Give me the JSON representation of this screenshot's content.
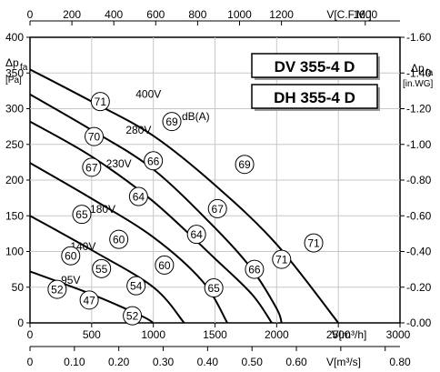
{
  "chart_data": {
    "type": "line",
    "models": [
      "DV 355-4 D",
      "DH 355-4 D"
    ],
    "axes": {
      "x_bottom_m3h": {
        "label": "V[m³/h]",
        "ticks": [
          0,
          500,
          1000,
          1500,
          2000,
          2500,
          3000
        ],
        "range": [
          0,
          3000
        ]
      },
      "x_bottom_m3s": {
        "label": "V[m³/s]",
        "ticks": [
          "0",
          "0.10",
          "0.20",
          "0.30",
          "0.40",
          "0.50",
          "0.60",
          "0.70",
          "0.80"
        ]
      },
      "x_top_cfm": {
        "label": "V[C.F.M.]",
        "ticks": [
          "0",
          "200",
          "400",
          "600",
          "800",
          "1000",
          "1200",
          "1600"
        ]
      },
      "y_left_pa": {
        "label_main": "Δp",
        "label_sub": "fa",
        "unit": "[Pa]",
        "ticks": [
          0,
          50,
          100,
          150,
          200,
          250,
          300,
          350,
          400
        ],
        "range": [
          0,
          400
        ]
      },
      "y_right_inwg": {
        "label_main": "Δp",
        "label_sub": "fa",
        "unit": "[in.WG]",
        "ticks": [
          "0.00",
          "0.20",
          "0.40",
          "0.60",
          "0.80",
          "1.00",
          "1.20",
          "1.40",
          "1.60"
        ]
      }
    },
    "grid": true,
    "dba_unit": "dB(A)",
    "series": [
      {
        "name": "400V",
        "points": [
          [
            0,
            355
          ],
          [
            500,
            310
          ],
          [
            1000,
            262
          ],
          [
            1500,
            193
          ],
          [
            2000,
            110
          ],
          [
            2500,
            0
          ]
        ]
      },
      {
        "name": "280V",
        "points": [
          [
            0,
            320
          ],
          [
            500,
            270
          ],
          [
            1000,
            215
          ],
          [
            1500,
            133
          ],
          [
            1800,
            75
          ],
          [
            2000,
            20
          ],
          [
            2040,
            0
          ]
        ]
      },
      {
        "name": "230V",
        "points": [
          [
            0,
            282
          ],
          [
            500,
            233
          ],
          [
            1000,
            170
          ],
          [
            1500,
            90
          ],
          [
            1800,
            40
          ],
          [
            1960,
            0
          ]
        ]
      },
      {
        "name": "180V",
        "points": [
          [
            0,
            224
          ],
          [
            500,
            174
          ],
          [
            1000,
            120
          ],
          [
            1400,
            58
          ],
          [
            1600,
            0
          ]
        ]
      },
      {
        "name": "140V",
        "points": [
          [
            0,
            150
          ],
          [
            500,
            102
          ],
          [
            1000,
            50
          ],
          [
            1250,
            0
          ]
        ]
      },
      {
        "name": "95V",
        "points": [
          [
            0,
            72
          ],
          [
            500,
            40
          ],
          [
            900,
            10
          ],
          [
            1000,
            0
          ]
        ]
      }
    ],
    "series_labels": [
      {
        "text": "400V",
        "q": 960,
        "p": 315
      },
      {
        "text": "280V",
        "q": 880,
        "p": 265
      },
      {
        "text": "230V",
        "q": 720,
        "p": 218
      },
      {
        "text": "180V",
        "q": 590,
        "p": 154
      },
      {
        "text": "140V",
        "q": 430,
        "p": 102
      },
      {
        "text": "95V",
        "q": 330,
        "p": 55
      }
    ],
    "sound_levels": [
      {
        "value": "71",
        "q": 570,
        "p": 310
      },
      {
        "value": "69",
        "q": 1150,
        "p": 282
      },
      {
        "value": "70",
        "q": 520,
        "p": 261
      },
      {
        "value": "66",
        "q": 1000,
        "p": 227
      },
      {
        "value": "69",
        "q": 1740,
        "p": 222
      },
      {
        "value": "67",
        "q": 500,
        "p": 218
      },
      {
        "value": "64",
        "q": 880,
        "p": 177
      },
      {
        "value": "67",
        "q": 1520,
        "p": 160
      },
      {
        "value": "65",
        "q": 420,
        "p": 152
      },
      {
        "value": "60",
        "q": 720,
        "p": 117
      },
      {
        "value": "64",
        "q": 1350,
        "p": 124
      },
      {
        "value": "71",
        "q": 2300,
        "p": 112
      },
      {
        "value": "60",
        "q": 330,
        "p": 94
      },
      {
        "value": "55",
        "q": 580,
        "p": 76
      },
      {
        "value": "60",
        "q": 1090,
        "p": 81
      },
      {
        "value": "71",
        "q": 2040,
        "p": 89
      },
      {
        "value": "66",
        "q": 1820,
        "p": 75
      },
      {
        "value": "52",
        "q": 220,
        "p": 47
      },
      {
        "value": "47",
        "q": 480,
        "p": 32
      },
      {
        "value": "54",
        "q": 860,
        "p": 52
      },
      {
        "value": "65",
        "q": 1490,
        "p": 49
      },
      {
        "value": "52",
        "q": 830,
        "p": 10
      }
    ]
  }
}
